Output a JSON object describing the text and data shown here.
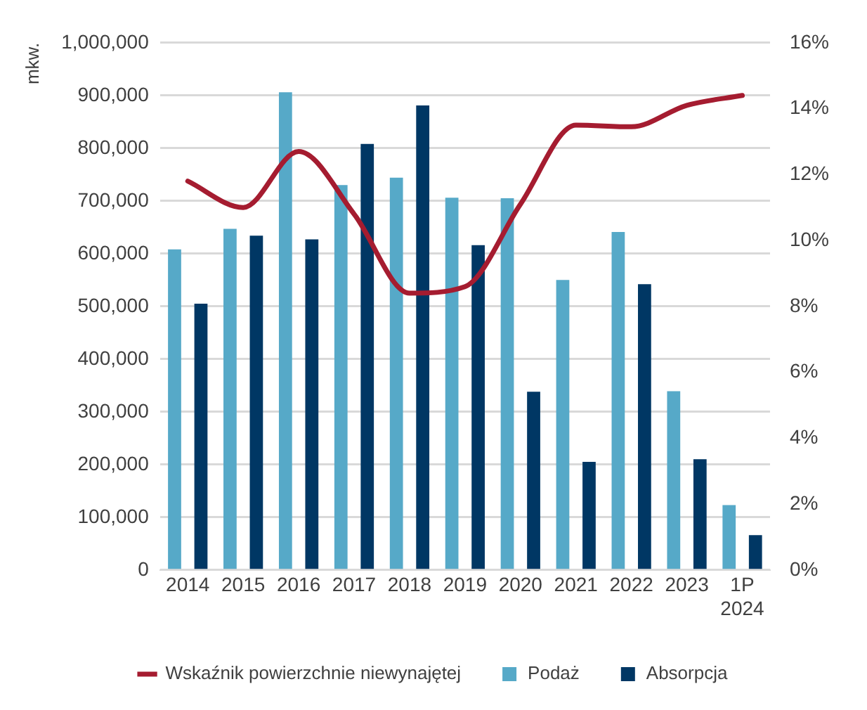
{
  "chart_data": {
    "type": "bar",
    "ylabel": "mkw.",
    "categories": [
      "2014",
      "2015",
      "2016",
      "2017",
      "2018",
      "2019",
      "2020",
      "2021",
      "2022",
      "2023",
      "1P 2024"
    ],
    "series": [
      {
        "name": "Podaż",
        "color": "#56a9c8",
        "values": [
          608000,
          647000,
          906000,
          730000,
          744000,
          706000,
          705000,
          550000,
          641000,
          339000,
          123000
        ]
      },
      {
        "name": "Absorpcja",
        "color": "#003764",
        "values": [
          505000,
          634000,
          627000,
          808000,
          881000,
          616000,
          338000,
          205000,
          542000,
          210000,
          66000
        ]
      },
      {
        "name": "Wskaźnik powierzchnie niewynajętej",
        "type": "line",
        "axis": "y2",
        "color": "#a51c30",
        "marker": "none",
        "values": [
          11.8,
          11.0,
          12.7,
          10.8,
          8.4,
          8.6,
          11.1,
          13.5,
          13.45,
          14.1,
          14.4
        ]
      }
    ],
    "ylim": [
      0,
      1000000
    ],
    "yticks": [
      {
        "value": 0,
        "label": "0"
      },
      {
        "value": 100000,
        "label": "100,000"
      },
      {
        "value": 200000,
        "label": "200,000"
      },
      {
        "value": 300000,
        "label": "300,000"
      },
      {
        "value": 400000,
        "label": "400,000"
      },
      {
        "value": 500000,
        "label": "500,000"
      },
      {
        "value": 600000,
        "label": "600,000"
      },
      {
        "value": 700000,
        "label": "700,000"
      },
      {
        "value": 800000,
        "label": "800,000"
      },
      {
        "value": 900000,
        "label": "900,000"
      },
      {
        "value": 1000000,
        "label": "1,000,000"
      }
    ],
    "y2lim": [
      0,
      16
    ],
    "y2ticks": [
      {
        "value": 0,
        "label": "0%"
      },
      {
        "value": 2,
        "label": "2%"
      },
      {
        "value": 4,
        "label": "4%"
      },
      {
        "value": 6,
        "label": "6%"
      },
      {
        "value": 8,
        "label": "8%"
      },
      {
        "value": 10,
        "label": "10%"
      },
      {
        "value": 12,
        "label": "12%"
      },
      {
        "value": 14,
        "label": "14%"
      },
      {
        "value": 16,
        "label": "16%"
      }
    ],
    "grid": "y",
    "legend": "bottom"
  }
}
